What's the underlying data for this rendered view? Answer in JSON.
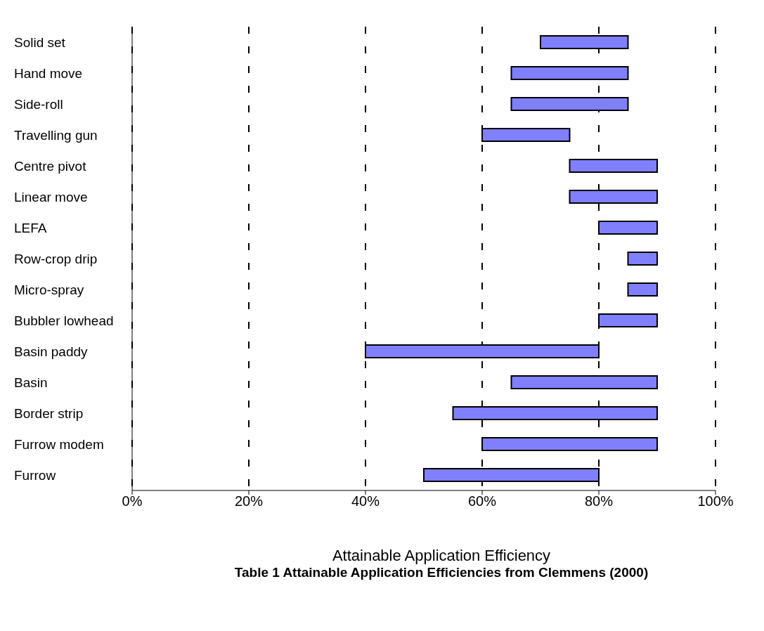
{
  "chart_data": {
    "type": "bar",
    "orientation": "horizontal",
    "categories": [
      "Solid set",
      "Hand move",
      "Side-roll",
      "Travelling gun",
      "Centre pivot",
      "Linear move",
      "LEFA",
      "Row-crop drip",
      "Micro-spray",
      "Bubbler lowhead",
      "Basin paddy",
      "Basin",
      "Border strip",
      "Furrow modem",
      "Furrow"
    ],
    "base": [
      70,
      65,
      65,
      60,
      75,
      75,
      80,
      85,
      85,
      80,
      40,
      65,
      55,
      60,
      50
    ],
    "values": [
      15,
      20,
      20,
      15,
      15,
      15,
      10,
      5,
      5,
      10,
      40,
      25,
      35,
      30,
      30
    ],
    "color": "#8080ff",
    "xlim": [
      0,
      100
    ],
    "xticks": [
      {
        "value": 0,
        "label": "0%"
      },
      {
        "value": 20,
        "label": "20%"
      },
      {
        "value": 40,
        "label": "40%"
      },
      {
        "value": 60,
        "label": "60%"
      },
      {
        "value": 80,
        "label": "80%"
      },
      {
        "value": 100,
        "label": "100%"
      }
    ],
    "grid": "x",
    "xlabel": "Attainable Application Efficiency",
    "annotations": [
      "Table 1 Attainable Application Efficiencies from Clemmens (2000)"
    ]
  }
}
